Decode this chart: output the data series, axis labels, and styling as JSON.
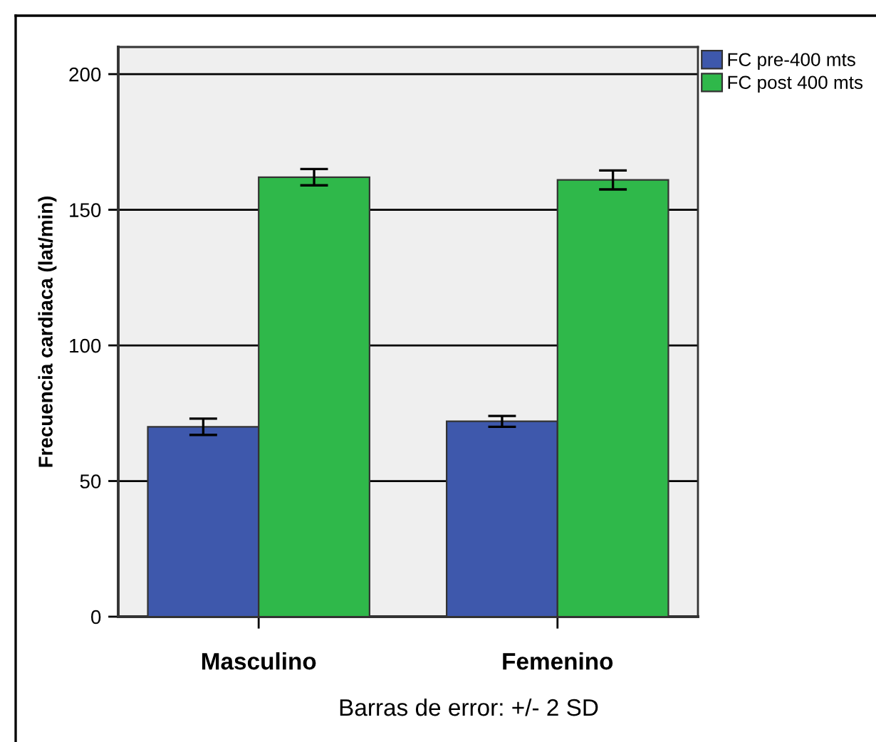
{
  "chart_data": {
    "type": "bar",
    "categories": [
      "Masculino",
      "Femenino"
    ],
    "series": [
      {
        "name": "FC pre-400 mts",
        "color": "#3e58ac",
        "values": [
          70,
          72
        ],
        "errors": [
          3,
          2
        ]
      },
      {
        "name": "FC post 400 mts",
        "color": "#2fb84a",
        "values": [
          162,
          161
        ],
        "errors": [
          3,
          3.5
        ]
      }
    ],
    "ylabel": "Frecuencia cardiaca (lat/min)",
    "ylim": [
      0,
      210
    ],
    "yticks": [
      0,
      50,
      100,
      150,
      200
    ],
    "grid": "y",
    "legend": "top right",
    "annotations": [
      "Barras de error: +/- 2 SD"
    ]
  }
}
